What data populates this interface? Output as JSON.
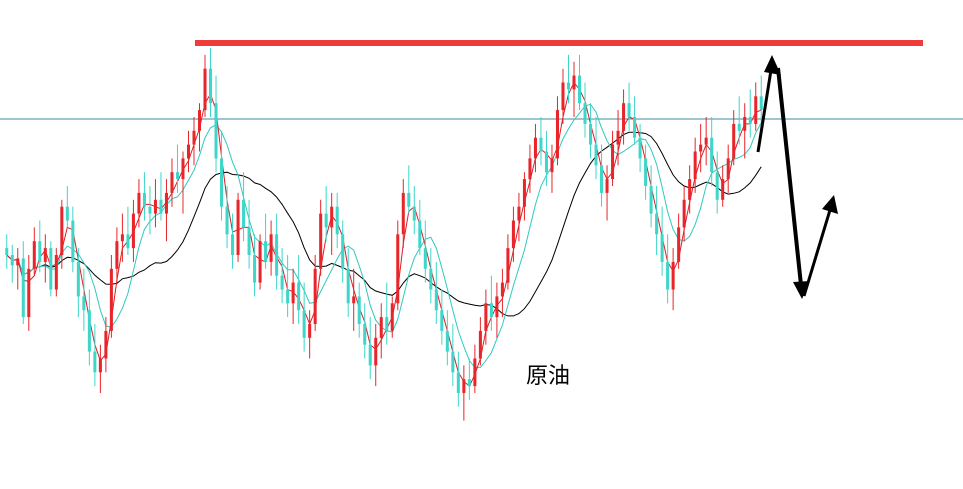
{
  "chart_data": {
    "type": "candlestick",
    "annotation": "原油",
    "colors": {
      "up": "#e8252a",
      "down": "#3dd6c8",
      "ma_fast": "#d81f26",
      "ma_mid": "#2fc9bd",
      "ma_slow": "#000000",
      "resistance": "#ee3b3b",
      "level_line": "#3f8aa6",
      "arrows": "#000000"
    },
    "y_range": [
      0,
      100
    ],
    "candles": [
      [
        62,
        66,
        56,
        60
      ],
      [
        60,
        63,
        52,
        57
      ],
      [
        57,
        62,
        50,
        59
      ],
      [
        59,
        64,
        40,
        42
      ],
      [
        42,
        60,
        38,
        56
      ],
      [
        56,
        68,
        54,
        64
      ],
      [
        64,
        70,
        55,
        58
      ],
      [
        58,
        66,
        52,
        62
      ],
      [
        62,
        64,
        48,
        50
      ],
      [
        50,
        62,
        48,
        60
      ],
      [
        60,
        76,
        56,
        74
      ],
      [
        74,
        80,
        68,
        70
      ],
      [
        70,
        74,
        55,
        58
      ],
      [
        58,
        62,
        42,
        48
      ],
      [
        48,
        56,
        38,
        44
      ],
      [
        44,
        50,
        28,
        32
      ],
      [
        32,
        40,
        22,
        26
      ],
      [
        26,
        34,
        20,
        30
      ],
      [
        30,
        42,
        26,
        38
      ],
      [
        38,
        60,
        36,
        56
      ],
      [
        56,
        68,
        52,
        64
      ],
      [
        64,
        72,
        58,
        66
      ],
      [
        66,
        74,
        60,
        62
      ],
      [
        62,
        76,
        58,
        72
      ],
      [
        72,
        82,
        68,
        78
      ],
      [
        78,
        84,
        70,
        74
      ],
      [
        74,
        80,
        66,
        72
      ],
      [
        72,
        82,
        68,
        76
      ],
      [
        76,
        84,
        70,
        72
      ],
      [
        72,
        82,
        64,
        78
      ],
      [
        78,
        88,
        74,
        84
      ],
      [
        84,
        92,
        78,
        82
      ],
      [
        82,
        90,
        72,
        88
      ],
      [
        88,
        96,
        84,
        92
      ],
      [
        92,
        100,
        86,
        96
      ],
      [
        96,
        104,
        90,
        102
      ],
      [
        102,
        118,
        100,
        114
      ],
      [
        114,
        120,
        100,
        104
      ],
      [
        104,
        112,
        84,
        88
      ],
      [
        88,
        96,
        70,
        74
      ],
      [
        74,
        80,
        62,
        66
      ],
      [
        66,
        72,
        56,
        60
      ],
      [
        60,
        78,
        58,
        76
      ],
      [
        76,
        84,
        64,
        68
      ],
      [
        68,
        76,
        56,
        60
      ],
      [
        60,
        66,
        48,
        52
      ],
      [
        52,
        66,
        50,
        64
      ],
      [
        64,
        72,
        56,
        58
      ],
      [
        58,
        70,
        54,
        66
      ],
      [
        66,
        72,
        50,
        54
      ],
      [
        54,
        62,
        46,
        50
      ],
      [
        50,
        60,
        42,
        46
      ],
      [
        46,
        56,
        40,
        52
      ],
      [
        52,
        60,
        40,
        44
      ],
      [
        44,
        52,
        32,
        36
      ],
      [
        36,
        44,
        30,
        40
      ],
      [
        40,
        60,
        38,
        56
      ],
      [
        56,
        76,
        54,
        72
      ],
      [
        72,
        80,
        64,
        68
      ],
      [
        68,
        78,
        60,
        74
      ],
      [
        74,
        78,
        62,
        66
      ],
      [
        66,
        70,
        52,
        56
      ],
      [
        56,
        62,
        42,
        46
      ],
      [
        46,
        56,
        38,
        48
      ],
      [
        48,
        52,
        36,
        40
      ],
      [
        40,
        46,
        30,
        34
      ],
      [
        34,
        42,
        24,
        28
      ],
      [
        28,
        40,
        22,
        36
      ],
      [
        36,
        46,
        30,
        42
      ],
      [
        42,
        52,
        34,
        38
      ],
      [
        38,
        48,
        36,
        46
      ],
      [
        46,
        70,
        44,
        66
      ],
      [
        66,
        82,
        62,
        78
      ],
      [
        78,
        86,
        72,
        74
      ],
      [
        74,
        80,
        66,
        70
      ],
      [
        70,
        76,
        60,
        62
      ],
      [
        62,
        70,
        52,
        56
      ],
      [
        56,
        62,
        46,
        50
      ],
      [
        50,
        58,
        40,
        44
      ],
      [
        44,
        50,
        34,
        38
      ],
      [
        38,
        44,
        28,
        32
      ],
      [
        32,
        40,
        22,
        26
      ],
      [
        26,
        32,
        16,
        20
      ],
      [
        20,
        28,
        12,
        24
      ],
      [
        24,
        30,
        18,
        22
      ],
      [
        22,
        34,
        20,
        30
      ],
      [
        30,
        42,
        28,
        38
      ],
      [
        38,
        50,
        34,
        46
      ],
      [
        46,
        54,
        38,
        42
      ],
      [
        42,
        52,
        36,
        48
      ],
      [
        48,
        56,
        42,
        52
      ],
      [
        52,
        66,
        50,
        62
      ],
      [
        62,
        74,
        58,
        70
      ],
      [
        70,
        78,
        64,
        74
      ],
      [
        74,
        84,
        70,
        82
      ],
      [
        82,
        92,
        78,
        88
      ],
      [
        88,
        98,
        84,
        94
      ],
      [
        94,
        100,
        86,
        90
      ],
      [
        90,
        96,
        80,
        84
      ],
      [
        84,
        92,
        78,
        88
      ],
      [
        88,
        106,
        86,
        102
      ],
      [
        102,
        114,
        98,
        110
      ],
      [
        110,
        118,
        104,
        108
      ],
      [
        108,
        116,
        100,
        112
      ],
      [
        112,
        118,
        102,
        104
      ],
      [
        104,
        110,
        94,
        98
      ],
      [
        98,
        104,
        88,
        92
      ],
      [
        92,
        100,
        82,
        86
      ],
      [
        86,
        92,
        74,
        78
      ],
      [
        78,
        86,
        70,
        82
      ],
      [
        82,
        96,
        80,
        92
      ],
      [
        92,
        102,
        86,
        96
      ],
      [
        96,
        108,
        92,
        104
      ],
      [
        104,
        110,
        96,
        100
      ],
      [
        100,
        106,
        92,
        94
      ],
      [
        94,
        98,
        84,
        88
      ],
      [
        88,
        92,
        76,
        80
      ],
      [
        80,
        86,
        68,
        72
      ],
      [
        72,
        80,
        60,
        66
      ],
      [
        66,
        74,
        54,
        58
      ],
      [
        58,
        66,
        46,
        50
      ],
      [
        50,
        62,
        44,
        58
      ],
      [
        58,
        72,
        56,
        68
      ],
      [
        68,
        80,
        64,
        76
      ],
      [
        76,
        86,
        72,
        82
      ],
      [
        82,
        94,
        78,
        90
      ],
      [
        90,
        98,
        84,
        92
      ],
      [
        92,
        100,
        86,
        94
      ],
      [
        94,
        100,
        80,
        84
      ],
      [
        84,
        90,
        72,
        76
      ],
      [
        76,
        86,
        74,
        82
      ],
      [
        82,
        92,
        78,
        88
      ],
      [
        88,
        102,
        86,
        98
      ],
      [
        98,
        106,
        92,
        96
      ],
      [
        96,
        104,
        88,
        100
      ],
      [
        100,
        108,
        94,
        98
      ],
      [
        98,
        110,
        96,
        106
      ],
      [
        106,
        112,
        98,
        102
      ]
    ],
    "resistance_level": 118,
    "horizontal_level": 102
  }
}
